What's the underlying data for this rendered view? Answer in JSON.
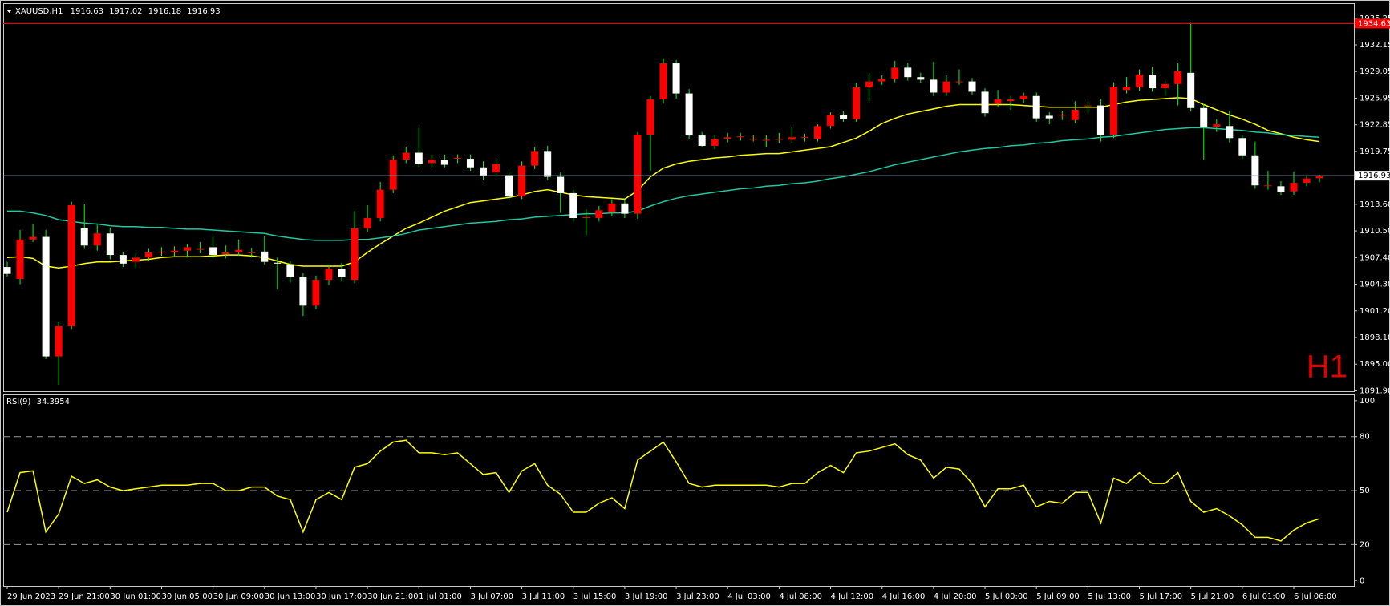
{
  "chart_data": {
    "type": "candlestick",
    "symbol": "XAUUSD,H1",
    "timeframe_badge": "H1",
    "categories": [
      "29 Jun 2023",
      null,
      null,
      null,
      "29 Jun 21:00",
      null,
      null,
      null,
      "30 Jun 01:00",
      null,
      null,
      null,
      "30 Jun 05:00",
      null,
      null,
      null,
      "30 Jun 09:00",
      null,
      null,
      null,
      "30 Jun 13:00",
      null,
      null,
      null,
      "30 Jun 17:00",
      null,
      null,
      null,
      "30 Jun 21:00",
      null,
      null,
      null,
      "1 Jul 01:00",
      null,
      null,
      null,
      "3 Jul 07:00",
      null,
      null,
      null,
      "3 Jul 11:00",
      null,
      null,
      null,
      "3 Jul 15:00",
      null,
      null,
      null,
      "3 Jul 19:00",
      null,
      null,
      null,
      "3 Jul 23:00",
      null,
      null,
      null,
      "4 Jul 03:00",
      null,
      null,
      null,
      "4 Jul 08:00",
      null,
      null,
      null,
      "4 Jul 12:00",
      null,
      null,
      null,
      "4 Jul 16:00",
      null,
      null,
      null,
      "4 Jul 20:00",
      null,
      null,
      null,
      "5 Jul 00:00",
      null,
      null,
      null,
      "5 Jul 09:00",
      null,
      null,
      null,
      "5 Jul 13:00",
      null,
      null,
      null,
      "5 Jul 17:00",
      null,
      null,
      null,
      "5 Jul 21:00",
      null,
      null,
      null,
      "6 Jul 01:00",
      null,
      null,
      null,
      "6 Jul 06:00",
      null,
      null
    ],
    "candles": [
      [
        1906.3,
        1906.9,
        1905.2,
        1905.5
      ],
      [
        1904.9,
        1910.6,
        1904.3,
        1909.5
      ],
      [
        1909.5,
        1911.3,
        1909.2,
        1909.8
      ],
      [
        1909.8,
        1910.6,
        1895.6,
        1895.9
      ],
      [
        1895.9,
        1899.9,
        1892.6,
        1899.4
      ],
      [
        1899.4,
        1913.9,
        1899.0,
        1913.5
      ],
      [
        1910.8,
        1913.6,
        1908.4,
        1908.8
      ],
      [
        1908.8,
        1911.2,
        1908.2,
        1910.2
      ],
      [
        1910.2,
        1910.9,
        1907.2,
        1907.7
      ],
      [
        1907.7,
        1908.1,
        1906.3,
        1906.7
      ],
      [
        1906.9,
        1907.8,
        1906.2,
        1907.4
      ],
      [
        1907.4,
        1908.4,
        1907.0,
        1908.0
      ],
      [
        1908.0,
        1908.6,
        1907.6,
        1908.1
      ],
      [
        1908.0,
        1908.7,
        1907.5,
        1908.2
      ],
      [
        1908.2,
        1909.0,
        1907.4,
        1908.6
      ],
      [
        1908.4,
        1909.2,
        1907.9,
        1908.4
      ],
      [
        1908.6,
        1909.9,
        1907.3,
        1907.7
      ],
      [
        1907.8,
        1908.8,
        1907.3,
        1908.0
      ],
      [
        1908.0,
        1909.5,
        1907.6,
        1908.3
      ],
      [
        1908.0,
        1908.5,
        1907.4,
        1908.0
      ],
      [
        1908.1,
        1909.9,
        1906.6,
        1906.9
      ],
      [
        1906.8,
        1907.4,
        1903.7,
        1906.7
      ],
      [
        1906.6,
        1907.0,
        1904.5,
        1905.1
      ],
      [
        1905.1,
        1905.6,
        1900.6,
        1901.8
      ],
      [
        1901.8,
        1905.3,
        1901.4,
        1904.8
      ],
      [
        1904.8,
        1906.6,
        1904.2,
        1906.1
      ],
      [
        1906.1,
        1906.8,
        1904.6,
        1905.1
      ],
      [
        1904.8,
        1912.8,
        1904.4,
        1910.8
      ],
      [
        1910.8,
        1913.5,
        1910.4,
        1912.0
      ],
      [
        1912.0,
        1916.2,
        1911.6,
        1915.3
      ],
      [
        1915.3,
        1919.3,
        1914.9,
        1918.8
      ],
      [
        1918.8,
        1920.3,
        1918.4,
        1919.6
      ],
      [
        1919.6,
        1922.5,
        1917.9,
        1918.3
      ],
      [
        1918.4,
        1919.4,
        1917.9,
        1918.8
      ],
      [
        1918.8,
        1919.4,
        1917.9,
        1918.2
      ],
      [
        1918.9,
        1919.4,
        1918.4,
        1919.0
      ],
      [
        1918.9,
        1919.4,
        1917.5,
        1917.9
      ],
      [
        1917.9,
        1918.6,
        1916.4,
        1916.9
      ],
      [
        1917.3,
        1918.8,
        1916.8,
        1918.3
      ],
      [
        1917.0,
        1917.4,
        1914.1,
        1914.5
      ],
      [
        1914.5,
        1918.6,
        1914.2,
        1918.1
      ],
      [
        1918.1,
        1920.3,
        1917.7,
        1919.8
      ],
      [
        1919.8,
        1920.4,
        1916.4,
        1916.8
      ],
      [
        1916.8,
        1917.3,
        1912.6,
        1914.9
      ],
      [
        1914.9,
        1915.3,
        1911.6,
        1912.0
      ],
      [
        1912.0,
        1913.0,
        1910.0,
        1912.1
      ],
      [
        1912.0,
        1913.4,
        1911.6,
        1912.9
      ],
      [
        1912.7,
        1914.2,
        1912.2,
        1913.7
      ],
      [
        1913.7,
        1914.2,
        1912.0,
        1912.5
      ],
      [
        1912.5,
        1922.0,
        1911.9,
        1921.7
      ],
      [
        1921.7,
        1926.2,
        1917.5,
        1925.8
      ],
      [
        1925.8,
        1930.6,
        1925.3,
        1930.0
      ],
      [
        1930.0,
        1930.4,
        1925.9,
        1926.5
      ],
      [
        1926.5,
        1927.0,
        1921.2,
        1921.6
      ],
      [
        1921.6,
        1922.0,
        1920.2,
        1920.4
      ],
      [
        1920.4,
        1921.6,
        1920.0,
        1921.2
      ],
      [
        1921.2,
        1921.9,
        1920.8,
        1921.4
      ],
      [
        1921.4,
        1921.9,
        1921.0,
        1921.5
      ],
      [
        1921.2,
        1921.6,
        1920.9,
        1921.2
      ],
      [
        1921.1,
        1921.6,
        1920.2,
        1921.1
      ],
      [
        1921.2,
        1921.9,
        1920.7,
        1921.2
      ],
      [
        1921.1,
        1922.6,
        1920.7,
        1921.4
      ],
      [
        1921.4,
        1921.8,
        1920.9,
        1921.4
      ],
      [
        1921.2,
        1922.9,
        1920.9,
        1922.7
      ],
      [
        1922.7,
        1924.3,
        1922.4,
        1924.0
      ],
      [
        1924.0,
        1924.4,
        1923.2,
        1923.5
      ],
      [
        1923.5,
        1927.7,
        1923.2,
        1927.2
      ],
      [
        1927.2,
        1928.9,
        1925.6,
        1927.9
      ],
      [
        1927.9,
        1928.6,
        1927.5,
        1928.2
      ],
      [
        1928.2,
        1930.3,
        1927.8,
        1929.5
      ],
      [
        1929.5,
        1930.1,
        1928.0,
        1928.4
      ],
      [
        1928.4,
        1928.9,
        1927.7,
        1928.1
      ],
      [
        1928.1,
        1930.2,
        1926.2,
        1926.6
      ],
      [
        1926.6,
        1928.6,
        1926.2,
        1927.9
      ],
      [
        1927.9,
        1929.3,
        1927.5,
        1927.9
      ],
      [
        1927.9,
        1928.3,
        1926.3,
        1926.7
      ],
      [
        1926.7,
        1927.1,
        1923.8,
        1924.2
      ],
      [
        1925.3,
        1926.9,
        1924.9,
        1925.8
      ],
      [
        1925.6,
        1926.2,
        1924.6,
        1925.8
      ],
      [
        1925.8,
        1926.6,
        1925.4,
        1926.2
      ],
      [
        1926.2,
        1926.6,
        1923.2,
        1923.6
      ],
      [
        1923.9,
        1924.3,
        1922.9,
        1923.6
      ],
      [
        1924.0,
        1924.5,
        1923.4,
        1924.0
      ],
      [
        1923.4,
        1925.6,
        1923.0,
        1924.6
      ],
      [
        1925.1,
        1925.6,
        1924.2,
        1925.1
      ],
      [
        1925.1,
        1925.9,
        1920.9,
        1921.7
      ],
      [
        1921.7,
        1927.8,
        1921.3,
        1927.3
      ],
      [
        1926.9,
        1928.4,
        1926.5,
        1927.3
      ],
      [
        1927.2,
        1929.3,
        1926.8,
        1928.7
      ],
      [
        1928.7,
        1929.6,
        1926.7,
        1927.1
      ],
      [
        1927.1,
        1928.0,
        1926.2,
        1927.6
      ],
      [
        1927.6,
        1930.0,
        1925.1,
        1929.1
      ],
      [
        1928.9,
        1934.7,
        1924.4,
        1924.8
      ],
      [
        1924.8,
        1925.3,
        1918.8,
        1922.6
      ],
      [
        1922.6,
        1923.5,
        1922.0,
        1922.9
      ],
      [
        1922.7,
        1924.5,
        1920.8,
        1921.3
      ],
      [
        1921.3,
        1921.7,
        1918.9,
        1919.3
      ],
      [
        1919.3,
        1920.9,
        1915.4,
        1915.8
      ],
      [
        1915.8,
        1917.5,
        1915.3,
        1915.8
      ],
      [
        1915.7,
        1916.3,
        1914.7,
        1915.0
      ],
      [
        1915.1,
        1917.4,
        1914.7,
        1916.1
      ],
      [
        1916.1,
        1916.9,
        1915.7,
        1916.6
      ],
      [
        1916.63,
        1917.02,
        1916.18,
        1916.93
      ]
    ],
    "up_color": "#ff0000",
    "down_color": "#ffffff",
    "wick_color": "#00ff00",
    "ylim": [
      1891.85,
      1937.0
    ],
    "yticks": [
      1935.25,
      1932.15,
      1929.05,
      1925.95,
      1922.85,
      1919.75,
      {
        "value": 1913.6,
        "label": "1913.60"
      },
      {
        "value": 1910.5,
        "label": "1910.50"
      },
      {
        "value": 1907.4,
        "label": "1907.40"
      },
      {
        "value": 1904.3,
        "label": "1904.30"
      },
      {
        "value": 1901.2,
        "label": "1901.20"
      },
      {
        "value": 1898.1,
        "label": "1898.10"
      },
      {
        "value": 1895.0,
        "label": "1895.00"
      },
      {
        "value": 1891.9,
        "label": "1891.90"
      }
    ],
    "alert_line": {
      "value": 1934.63,
      "color": "#ff0000"
    },
    "overlays": [
      {
        "color": "#ffff00",
        "values": [
          1907.4,
          1907.5,
          1907.3,
          1906.4,
          1906.2,
          1906.4,
          1906.7,
          1906.9,
          1906.9,
          1907.0,
          1907.1,
          1907.2,
          1907.4,
          1907.5,
          1907.5,
          1907.5,
          1907.6,
          1907.7,
          1907.7,
          1907.6,
          1907.4,
          1907.0,
          1906.6,
          1906.4,
          1906.4,
          1906.4,
          1906.4,
          1906.9,
          1908.0,
          1909.0,
          1909.9,
          1910.8,
          1911.4,
          1912.1,
          1912.8,
          1913.3,
          1913.8,
          1914.0,
          1914.2,
          1914.4,
          1914.7,
          1915.1,
          1915.3,
          1915.0,
          1914.7,
          1914.5,
          1914.4,
          1914.3,
          1914.2,
          1915.2,
          1916.8,
          1917.8,
          1918.3,
          1918.6,
          1918.8,
          1919.0,
          1919.1,
          1919.3,
          1919.4,
          1919.5,
          1919.5,
          1919.7,
          1919.9,
          1920.1,
          1920.3,
          1920.8,
          1921.3,
          1922.1,
          1923.0,
          1923.6,
          1924.1,
          1924.4,
          1924.7,
          1925.0,
          1925.2,
          1925.2,
          1925.2,
          1925.2,
          1925.2,
          1925.1,
          1925.0,
          1924.9,
          1924.9,
          1924.9,
          1924.9,
          1924.9,
          1925.2,
          1925.5,
          1925.7,
          1925.8,
          1925.9,
          1926.0,
          1925.9,
          1925.2,
          1924.6,
          1924.0,
          1923.5,
          1922.9,
          1922.2,
          1921.8,
          1921.4,
          1921.1,
          1920.9
        ]
      },
      {
        "color": "#20c8a0",
        "values": [
          1912.8,
          1912.8,
          1912.6,
          1912.3,
          1911.8,
          1911.6,
          1911.4,
          1911.3,
          1911.1,
          1911.0,
          1911.0,
          1910.9,
          1910.9,
          1910.8,
          1910.7,
          1910.7,
          1910.6,
          1910.5,
          1910.4,
          1910.3,
          1910.2,
          1909.9,
          1909.7,
          1909.5,
          1909.4,
          1909.4,
          1909.4,
          1909.5,
          1909.5,
          1909.7,
          1909.9,
          1910.2,
          1910.6,
          1910.8,
          1911.0,
          1911.2,
          1911.4,
          1911.5,
          1911.6,
          1911.8,
          1911.9,
          1912.1,
          1912.2,
          1912.3,
          1912.4,
          1912.5,
          1912.5,
          1912.6,
          1912.6,
          1912.8,
          1913.4,
          1913.9,
          1914.3,
          1914.6,
          1914.8,
          1915.0,
          1915.2,
          1915.4,
          1915.5,
          1915.7,
          1915.8,
          1916.0,
          1916.1,
          1916.3,
          1916.6,
          1916.8,
          1917.1,
          1917.4,
          1917.8,
          1918.2,
          1918.5,
          1918.8,
          1919.1,
          1919.4,
          1919.7,
          1919.9,
          1920.1,
          1920.2,
          1920.4,
          1920.5,
          1920.7,
          1920.8,
          1921.0,
          1921.1,
          1921.2,
          1921.4,
          1921.5,
          1921.7,
          1921.9,
          1922.1,
          1922.3,
          1922.4,
          1922.5,
          1922.5,
          1922.4,
          1922.3,
          1922.2,
          1922.0,
          1921.9,
          1921.7,
          1921.6,
          1921.5,
          1921.4
        ]
      }
    ],
    "indicator": {
      "label": "RSI(9)",
      "color": "#ffff00",
      "ylim": [
        -3,
        103.5
      ],
      "yticks": [
        100,
        80,
        50,
        20,
        0
      ],
      "levels": [
        80,
        50,
        20
      ],
      "values": [
        38,
        60,
        61,
        27,
        37,
        58,
        54,
        56,
        52,
        50,
        51,
        52,
        53,
        53,
        53,
        54,
        54,
        50,
        50,
        52,
        52,
        47,
        45,
        27,
        45,
        49,
        45,
        63,
        65,
        72,
        77,
        78,
        71,
        71,
        70,
        71,
        65,
        59,
        60,
        49,
        61,
        65,
        53,
        48,
        38,
        38,
        43,
        46,
        40,
        67,
        72,
        77,
        66,
        54,
        52,
        53,
        53,
        53,
        53,
        53,
        52,
        54,
        54,
        60,
        64,
        60,
        71,
        72,
        74,
        76,
        70,
        67,
        57,
        63,
        62,
        54,
        41,
        51,
        51,
        53,
        41,
        44,
        43,
        49,
        49,
        32,
        57,
        54,
        60,
        54,
        54,
        60,
        44,
        38,
        40,
        36,
        31,
        24,
        24,
        22,
        28,
        32,
        34.3954
      ]
    }
  }
}
